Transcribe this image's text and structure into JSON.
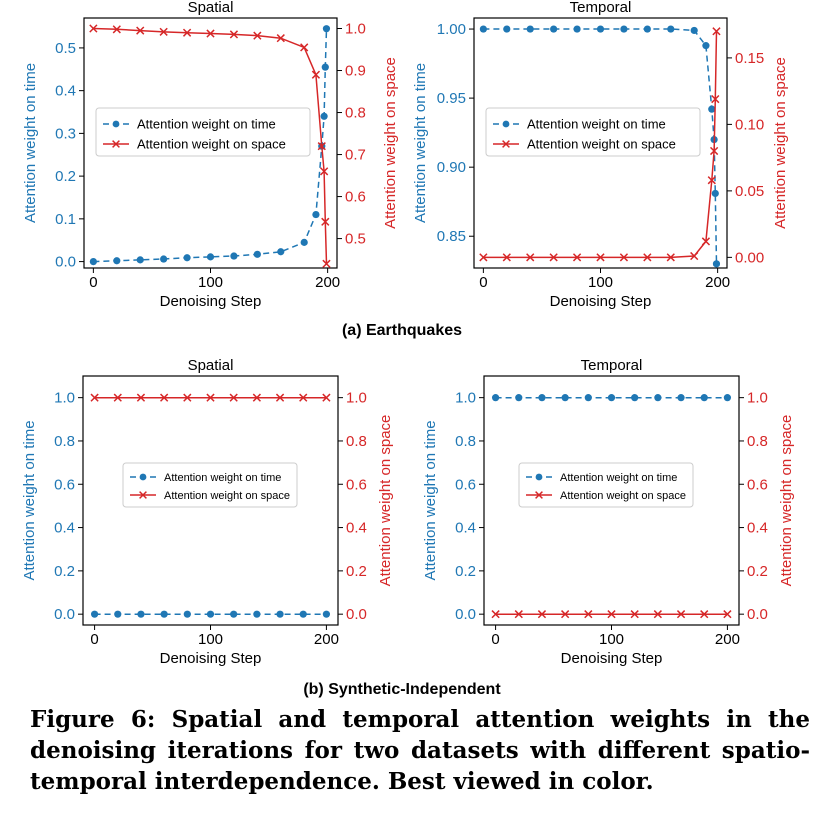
{
  "colors": {
    "time": "#1f77b4",
    "space": "#d62728"
  },
  "sections": [
    {
      "label": "(a) Earthquakes"
    },
    {
      "label": "(b) Synthetic-Independent"
    }
  ],
  "chart_data": [
    {
      "type": "line",
      "title": "Spatial",
      "xlabel": "Denoising Step",
      "ylabel_left": "Attention weight on time",
      "ylabel_right": "Attention weight on space",
      "xlim": [
        -8,
        208
      ],
      "ylim_left": [
        -0.015,
        0.57
      ],
      "ylim_right": [
        0.43,
        1.025
      ],
      "xticks": [
        "0",
        "100",
        "200"
      ],
      "yticks_left": [
        "0.0",
        "0.1",
        "0.2",
        "0.3",
        "0.4",
        "0.5"
      ],
      "yticks_right": [
        "0.5",
        "0.6",
        "0.7",
        "0.8",
        "0.9",
        "1.0"
      ],
      "legend_position": "center-left",
      "series": [
        {
          "name": "Attention weight on time",
          "axis": "left",
          "style": "dashed",
          "marker": "o",
          "x": [
            0,
            20,
            40,
            60,
            80,
            100,
            120,
            140,
            160,
            180,
            190,
            195,
            197,
            198,
            199
          ],
          "y": [
            0.0,
            0.002,
            0.004,
            0.006,
            0.009,
            0.011,
            0.013,
            0.017,
            0.023,
            0.045,
            0.11,
            0.27,
            0.34,
            0.455,
            0.545
          ]
        },
        {
          "name": "Attention weight on space",
          "axis": "right",
          "style": "solid",
          "marker": "x",
          "x": [
            0,
            20,
            40,
            60,
            80,
            100,
            120,
            140,
            160,
            180,
            190,
            195,
            197,
            198,
            199
          ],
          "y": [
            1.0,
            0.998,
            0.995,
            0.992,
            0.99,
            0.988,
            0.986,
            0.983,
            0.977,
            0.955,
            0.89,
            0.72,
            0.66,
            0.54,
            0.44
          ]
        }
      ]
    },
    {
      "type": "line",
      "title": "Temporal",
      "xlabel": "Denoising Step",
      "ylabel_left": "Attention weight on time",
      "ylabel_right": "Attention weight on space",
      "xlim": [
        -8,
        208
      ],
      "ylim_left": [
        0.827,
        1.008
      ],
      "ylim_right": [
        -0.008,
        0.18
      ],
      "xticks": [
        "0",
        "100",
        "200"
      ],
      "yticks_left": [
        "0.85",
        "0.90",
        "0.95",
        "1.00"
      ],
      "yticks_right": [
        "0.00",
        "0.05",
        "0.10",
        "0.15"
      ],
      "legend_position": "center-left",
      "series": [
        {
          "name": "Attention weight on time",
          "axis": "left",
          "style": "dashed",
          "marker": "o",
          "x": [
            0,
            20,
            40,
            60,
            80,
            100,
            120,
            140,
            160,
            180,
            190,
            195,
            197,
            198,
            199
          ],
          "y": [
            1.0,
            1.0,
            1.0,
            1.0,
            1.0,
            1.0,
            1.0,
            1.0,
            1.0,
            0.999,
            0.988,
            0.942,
            0.92,
            0.881,
            0.83
          ]
        },
        {
          "name": "Attention weight on space",
          "axis": "right",
          "style": "solid",
          "marker": "x",
          "x": [
            0,
            20,
            40,
            60,
            80,
            100,
            120,
            140,
            160,
            180,
            190,
            195,
            197,
            198,
            199
          ],
          "y": [
            0.0,
            0.0,
            0.0,
            0.0,
            0.0,
            0.0,
            0.0,
            0.0,
            0.0,
            0.001,
            0.012,
            0.058,
            0.08,
            0.119,
            0.17
          ]
        }
      ]
    },
    {
      "type": "line",
      "title": "Spatial",
      "xlabel": "Denoising Step",
      "ylabel_left": "Attention weight on time",
      "ylabel_right": "Attention weight on space",
      "xlim": [
        -10,
        210
      ],
      "ylim_left": [
        -0.05,
        1.1
      ],
      "ylim_right": [
        -0.05,
        1.1
      ],
      "xticks": [
        "0",
        "100",
        "200"
      ],
      "yticks_left": [
        "0.0",
        "0.2",
        "0.4",
        "0.6",
        "0.8",
        "1.0"
      ],
      "yticks_right": [
        "0.0",
        "0.2",
        "0.4",
        "0.6",
        "0.8",
        "1.0"
      ],
      "legend_position": "center",
      "series": [
        {
          "name": "Attention weight on time",
          "axis": "left",
          "style": "dashed",
          "marker": "o",
          "x": [
            0,
            20,
            40,
            60,
            80,
            100,
            120,
            140,
            160,
            180,
            200
          ],
          "y": [
            0,
            0,
            0,
            0,
            0,
            0,
            0,
            0,
            0,
            0,
            0
          ]
        },
        {
          "name": "Attention weight on space",
          "axis": "right",
          "style": "solid",
          "marker": "x",
          "x": [
            0,
            20,
            40,
            60,
            80,
            100,
            120,
            140,
            160,
            180,
            200
          ],
          "y": [
            1,
            1,
            1,
            1,
            1,
            1,
            1,
            1,
            1,
            1,
            1
          ]
        }
      ]
    },
    {
      "type": "line",
      "title": "Temporal",
      "xlabel": "Denoising Step",
      "ylabel_left": "Attention weight on time",
      "ylabel_right": "Attention weight on space",
      "xlim": [
        -10,
        210
      ],
      "ylim_left": [
        -0.05,
        1.1
      ],
      "ylim_right": [
        -0.05,
        1.1
      ],
      "xticks": [
        "0",
        "100",
        "200"
      ],
      "yticks_left": [
        "0.0",
        "0.2",
        "0.4",
        "0.6",
        "0.8",
        "1.0"
      ],
      "yticks_right": [
        "0.0",
        "0.2",
        "0.4",
        "0.6",
        "0.8",
        "1.0"
      ],
      "legend_position": "center",
      "series": [
        {
          "name": "Attention weight on time",
          "axis": "left",
          "style": "dashed",
          "marker": "o",
          "x": [
            0,
            20,
            40,
            60,
            80,
            100,
            120,
            140,
            160,
            180,
            200
          ],
          "y": [
            1,
            1,
            1,
            1,
            1,
            1,
            1,
            1,
            1,
            1,
            1
          ]
        },
        {
          "name": "Attention weight on space",
          "axis": "right",
          "style": "solid",
          "marker": "x",
          "x": [
            0,
            20,
            40,
            60,
            80,
            100,
            120,
            140,
            160,
            180,
            200
          ],
          "y": [
            0,
            0,
            0,
            0,
            0,
            0,
            0,
            0,
            0,
            0,
            0
          ]
        }
      ]
    }
  ],
  "caption": "Figure 6: Spatial and temporal attention weights in the denoising iterations for two datasets with different spatio-temporal interdependence. Best viewed in color."
}
